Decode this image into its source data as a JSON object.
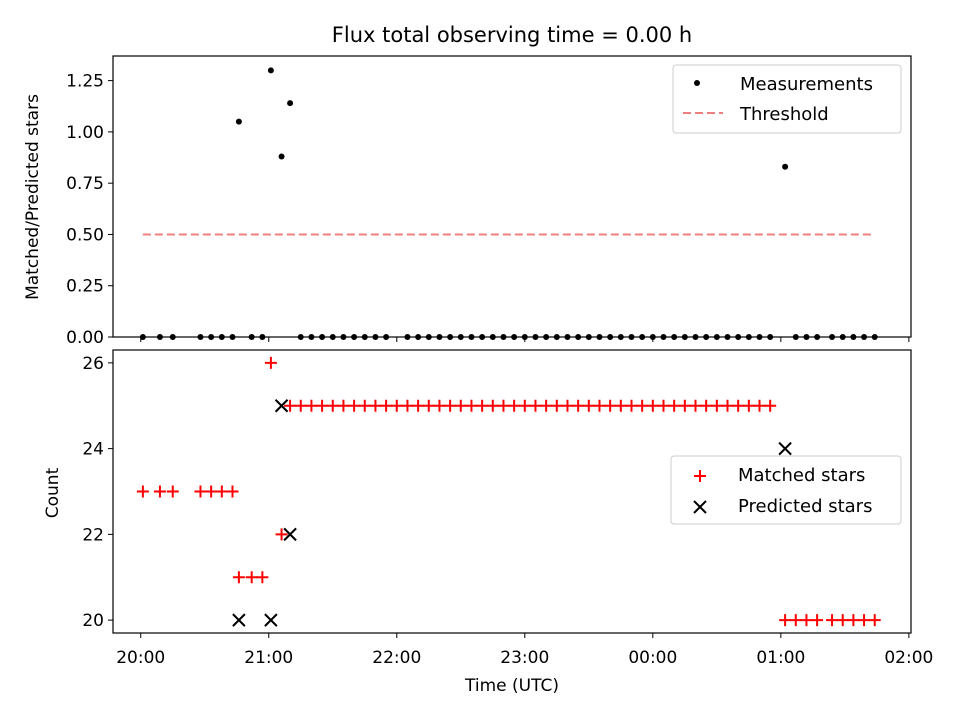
{
  "chart_data": [
    {
      "type": "scatter",
      "title": "Flux total observing time = 0.00 h",
      "xlabel": "",
      "ylabel": "Matched/Predicted stars",
      "xlim": [
        "19:47",
        "02:01"
      ],
      "ylim": [
        0,
        1.37
      ],
      "yticks": [
        0.0,
        0.25,
        0.5,
        0.75,
        1.0,
        1.25
      ],
      "ytick_labels": [
        "0.00",
        "0.25",
        "0.50",
        "0.75",
        "1.00",
        "1.25"
      ],
      "xticks": [
        "20:00",
        "21:00",
        "22:00",
        "23:00",
        "00:00",
        "01:00",
        "02:00"
      ],
      "show_xtick_labels": false,
      "grid": false,
      "legend_placement": "top-right",
      "series": [
        {
          "name": "Measurements",
          "kind": "scatter",
          "marker": "dot",
          "color": "#000000",
          "points": [
            {
              "x": "20:01",
              "y": 0
            },
            {
              "x": "20:09",
              "y": 0
            },
            {
              "x": "20:15",
              "y": 0
            },
            {
              "x": "20:28",
              "y": 0
            },
            {
              "x": "20:33",
              "y": 0
            },
            {
              "x": "20:38",
              "y": 0
            },
            {
              "x": "20:43",
              "y": 0
            },
            {
              "x": "20:46",
              "y": 1.05
            },
            {
              "x": "20:52",
              "y": 0
            },
            {
              "x": "20:57",
              "y": 0
            },
            {
              "x": "21:01",
              "y": 1.3
            },
            {
              "x": "21:06",
              "y": 0.88
            },
            {
              "x": "21:10",
              "y": 1.14
            },
            {
              "x": "21:15",
              "y": 0
            },
            {
              "x": "21:20",
              "y": 0
            },
            {
              "x": "21:25",
              "y": 0
            },
            {
              "x": "21:30",
              "y": 0
            },
            {
              "x": "21:35",
              "y": 0
            },
            {
              "x": "21:40",
              "y": 0
            },
            {
              "x": "21:45",
              "y": 0
            },
            {
              "x": "21:50",
              "y": 0
            },
            {
              "x": "21:55",
              "y": 0
            },
            {
              "x": "22:05",
              "y": 0
            },
            {
              "x": "22:10",
              "y": 0
            },
            {
              "x": "22:15",
              "y": 0
            },
            {
              "x": "22:20",
              "y": 0
            },
            {
              "x": "22:25",
              "y": 0
            },
            {
              "x": "22:30",
              "y": 0
            },
            {
              "x": "22:35",
              "y": 0
            },
            {
              "x": "22:40",
              "y": 0
            },
            {
              "x": "22:45",
              "y": 0
            },
            {
              "x": "22:50",
              "y": 0
            },
            {
              "x": "22:55",
              "y": 0
            },
            {
              "x": "23:00",
              "y": 0
            },
            {
              "x": "23:05",
              "y": 0
            },
            {
              "x": "23:10",
              "y": 0
            },
            {
              "x": "23:15",
              "y": 0
            },
            {
              "x": "23:20",
              "y": 0
            },
            {
              "x": "23:25",
              "y": 0
            },
            {
              "x": "23:30",
              "y": 0
            },
            {
              "x": "23:35",
              "y": 0
            },
            {
              "x": "23:40",
              "y": 0
            },
            {
              "x": "23:45",
              "y": 0
            },
            {
              "x": "23:50",
              "y": 0
            },
            {
              "x": "23:55",
              "y": 0
            },
            {
              "x": "00:00",
              "y": 0
            },
            {
              "x": "00:05",
              "y": 0
            },
            {
              "x": "00:10",
              "y": 0
            },
            {
              "x": "00:15",
              "y": 0
            },
            {
              "x": "00:20",
              "y": 0
            },
            {
              "x": "00:25",
              "y": 0
            },
            {
              "x": "00:30",
              "y": 0
            },
            {
              "x": "00:35",
              "y": 0
            },
            {
              "x": "00:40",
              "y": 0
            },
            {
              "x": "00:45",
              "y": 0
            },
            {
              "x": "00:50",
              "y": 0
            },
            {
              "x": "00:55",
              "y": 0
            },
            {
              "x": "01:02",
              "y": 0.83
            },
            {
              "x": "01:07",
              "y": 0
            },
            {
              "x": "01:12",
              "y": 0
            },
            {
              "x": "01:17",
              "y": 0
            },
            {
              "x": "01:24",
              "y": 0
            },
            {
              "x": "01:29",
              "y": 0
            },
            {
              "x": "01:34",
              "y": 0
            },
            {
              "x": "01:39",
              "y": 0
            },
            {
              "x": "01:44",
              "y": 0
            }
          ]
        },
        {
          "name": "Threshold",
          "kind": "line",
          "style": "dashed",
          "color": "#f08080",
          "points": [
            {
              "x": "20:01",
              "y": 0.5
            },
            {
              "x": "01:44",
              "y": 0.5
            }
          ]
        }
      ]
    },
    {
      "type": "scatter",
      "title": "",
      "xlabel": "Time (UTC)",
      "ylabel": "Count",
      "xlim": [
        "19:47",
        "02:01"
      ],
      "ylim": [
        19.7,
        26.3
      ],
      "yticks": [
        20,
        22,
        24,
        26
      ],
      "ytick_labels": [
        "20",
        "22",
        "24",
        "26"
      ],
      "xticks": [
        "20:00",
        "21:00",
        "22:00",
        "23:00",
        "00:00",
        "01:00",
        "02:00"
      ],
      "xtick_labels": [
        "20:00",
        "21:00",
        "22:00",
        "23:00",
        "00:00",
        "01:00",
        "02:00"
      ],
      "show_xtick_labels": true,
      "grid": false,
      "legend_placement": "center-right",
      "series": [
        {
          "name": "Matched stars",
          "kind": "scatter",
          "marker": "plus",
          "color": "#ff0000",
          "points": [
            {
              "x": "20:01",
              "y": 23
            },
            {
              "x": "20:09",
              "y": 23
            },
            {
              "x": "20:15",
              "y": 23
            },
            {
              "x": "20:28",
              "y": 23
            },
            {
              "x": "20:33",
              "y": 23
            },
            {
              "x": "20:38",
              "y": 23
            },
            {
              "x": "20:43",
              "y": 23
            },
            {
              "x": "20:46",
              "y": 21
            },
            {
              "x": "20:52",
              "y": 21
            },
            {
              "x": "20:57",
              "y": 21
            },
            {
              "x": "21:01",
              "y": 26
            },
            {
              "x": "21:06",
              "y": 22
            },
            {
              "x": "21:10",
              "y": 25
            },
            {
              "x": "21:15",
              "y": 25
            },
            {
              "x": "21:20",
              "y": 25
            },
            {
              "x": "21:25",
              "y": 25
            },
            {
              "x": "21:30",
              "y": 25
            },
            {
              "x": "21:35",
              "y": 25
            },
            {
              "x": "21:40",
              "y": 25
            },
            {
              "x": "21:45",
              "y": 25
            },
            {
              "x": "21:50",
              "y": 25
            },
            {
              "x": "21:55",
              "y": 25
            },
            {
              "x": "22:00",
              "y": 25
            },
            {
              "x": "22:05",
              "y": 25
            },
            {
              "x": "22:10",
              "y": 25
            },
            {
              "x": "22:15",
              "y": 25
            },
            {
              "x": "22:20",
              "y": 25
            },
            {
              "x": "22:25",
              "y": 25
            },
            {
              "x": "22:30",
              "y": 25
            },
            {
              "x": "22:35",
              "y": 25
            },
            {
              "x": "22:40",
              "y": 25
            },
            {
              "x": "22:45",
              "y": 25
            },
            {
              "x": "22:50",
              "y": 25
            },
            {
              "x": "22:55",
              "y": 25
            },
            {
              "x": "23:00",
              "y": 25
            },
            {
              "x": "23:05",
              "y": 25
            },
            {
              "x": "23:10",
              "y": 25
            },
            {
              "x": "23:15",
              "y": 25
            },
            {
              "x": "23:20",
              "y": 25
            },
            {
              "x": "23:25",
              "y": 25
            },
            {
              "x": "23:30",
              "y": 25
            },
            {
              "x": "23:35",
              "y": 25
            },
            {
              "x": "23:40",
              "y": 25
            },
            {
              "x": "23:45",
              "y": 25
            },
            {
              "x": "23:50",
              "y": 25
            },
            {
              "x": "23:55",
              "y": 25
            },
            {
              "x": "00:00",
              "y": 25
            },
            {
              "x": "00:05",
              "y": 25
            },
            {
              "x": "00:10",
              "y": 25
            },
            {
              "x": "00:15",
              "y": 25
            },
            {
              "x": "00:20",
              "y": 25
            },
            {
              "x": "00:25",
              "y": 25
            },
            {
              "x": "00:30",
              "y": 25
            },
            {
              "x": "00:35",
              "y": 25
            },
            {
              "x": "00:40",
              "y": 25
            },
            {
              "x": "00:45",
              "y": 25
            },
            {
              "x": "00:50",
              "y": 25
            },
            {
              "x": "00:55",
              "y": 25
            },
            {
              "x": "01:02",
              "y": 20
            },
            {
              "x": "01:07",
              "y": 20
            },
            {
              "x": "01:12",
              "y": 20
            },
            {
              "x": "01:17",
              "y": 20
            },
            {
              "x": "01:24",
              "y": 20
            },
            {
              "x": "01:29",
              "y": 20
            },
            {
              "x": "01:34",
              "y": 20
            },
            {
              "x": "01:39",
              "y": 20
            },
            {
              "x": "01:44",
              "y": 20
            }
          ]
        },
        {
          "name": "Predicted stars",
          "kind": "scatter",
          "marker": "x",
          "color": "#000000",
          "points": [
            {
              "x": "20:46",
              "y": 20
            },
            {
              "x": "21:01",
              "y": 20
            },
            {
              "x": "21:06",
              "y": 25
            },
            {
              "x": "21:10",
              "y": 22
            },
            {
              "x": "01:02",
              "y": 24
            }
          ]
        }
      ]
    }
  ]
}
